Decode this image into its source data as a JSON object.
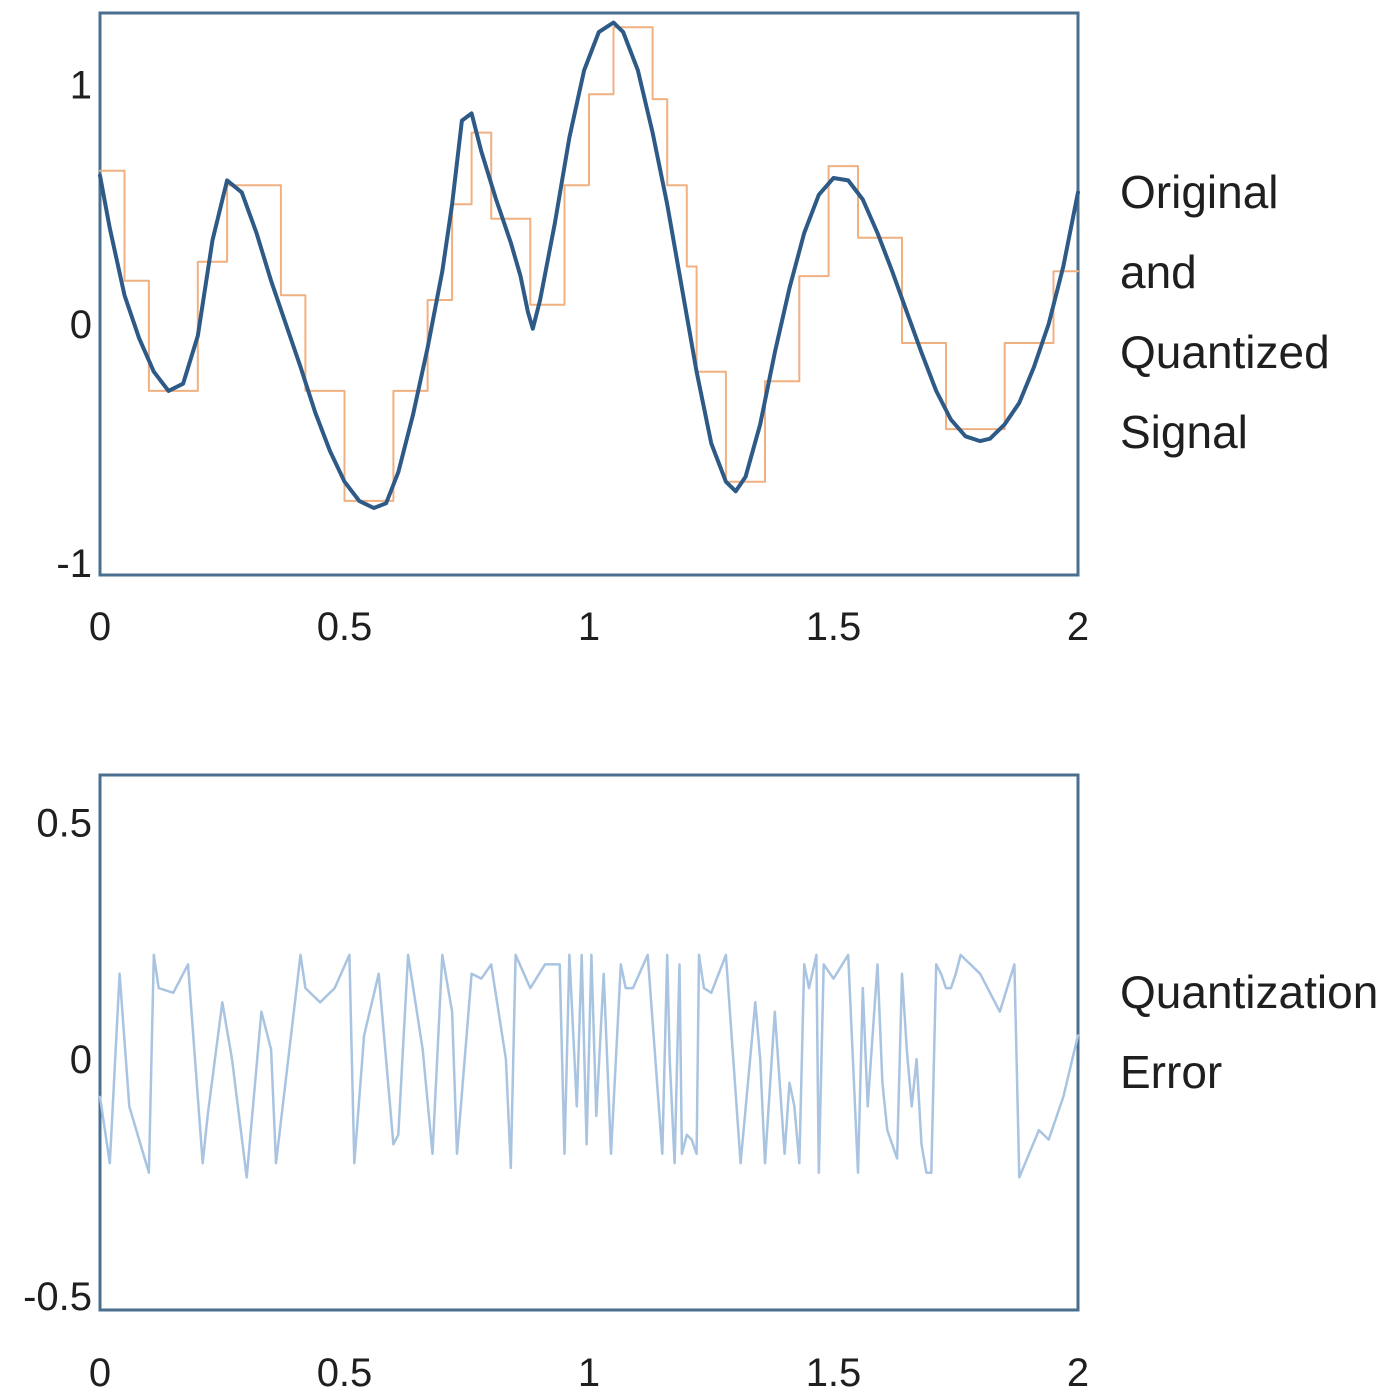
{
  "chart_data": [
    {
      "type": "line",
      "title": "",
      "xlabel": "",
      "ylabel": "",
      "side_label_lines": [
        "Original",
        "and",
        "Quantized",
        "Signal"
      ],
      "xlim": [
        0,
        2
      ],
      "ylim": [
        -1.05,
        1.3
      ],
      "x_ticks": [
        {
          "value": 0,
          "label": "0"
        },
        {
          "value": 0.5,
          "label": "0.5"
        },
        {
          "value": 1,
          "label": "1"
        },
        {
          "value": 1.5,
          "label": "1.5"
        },
        {
          "value": 2,
          "label": "2"
        }
      ],
      "y_ticks": [
        {
          "value": 1,
          "label": "1"
        },
        {
          "value": 0,
          "label": "0"
        },
        {
          "value": -1,
          "label": "-1"
        }
      ],
      "grid": false,
      "legend": "none",
      "series": [
        {
          "key": "original",
          "style": "line",
          "color": "#2e5a87",
          "x": [
            0,
            0.02,
            0.05,
            0.08,
            0.11,
            0.14,
            0.17,
            0.2,
            0.23,
            0.26,
            0.29,
            0.32,
            0.35,
            0.38,
            0.41,
            0.44,
            0.47,
            0.5,
            0.53,
            0.56,
            0.585,
            0.61,
            0.64,
            0.67,
            0.7,
            0.72,
            0.74,
            0.76,
            0.78,
            0.81,
            0.84,
            0.86,
            0.875,
            0.885,
            0.9,
            0.93,
            0.96,
            0.99,
            1.02,
            1.05,
            1.07,
            1.1,
            1.13,
            1.16,
            1.19,
            1.22,
            1.25,
            1.28,
            1.3,
            1.32,
            1.35,
            1.38,
            1.41,
            1.44,
            1.47,
            1.5,
            1.53,
            1.56,
            1.59,
            1.62,
            1.65,
            1.68,
            1.71,
            1.74,
            1.77,
            1.8,
            1.82,
            1.85,
            1.88,
            1.91,
            1.94,
            1.97,
            2.0
          ],
          "y": [
            0.62,
            0.4,
            0.12,
            -0.06,
            -0.2,
            -0.28,
            -0.25,
            -0.05,
            0.35,
            0.6,
            0.55,
            0.38,
            0.18,
            0.0,
            -0.18,
            -0.37,
            -0.53,
            -0.66,
            -0.74,
            -0.77,
            -0.75,
            -0.62,
            -0.38,
            -0.1,
            0.22,
            0.5,
            0.85,
            0.88,
            0.72,
            0.52,
            0.34,
            0.2,
            0.05,
            -0.02,
            0.1,
            0.42,
            0.78,
            1.06,
            1.22,
            1.26,
            1.22,
            1.06,
            0.8,
            0.5,
            0.15,
            -0.2,
            -0.5,
            -0.66,
            -0.7,
            -0.64,
            -0.42,
            -0.12,
            0.15,
            0.38,
            0.54,
            0.61,
            0.6,
            0.52,
            0.38,
            0.22,
            0.05,
            -0.12,
            -0.28,
            -0.4,
            -0.47,
            -0.49,
            -0.48,
            -0.42,
            -0.33,
            -0.18,
            0.0,
            0.24,
            0.55
          ]
        },
        {
          "key": "quantized",
          "style": "step",
          "color": "#f0b080",
          "edges": [
            0,
            0.05,
            0.1,
            0.2,
            0.26,
            0.37,
            0.42,
            0.5,
            0.6,
            0.67,
            0.72,
            0.76,
            0.8,
            0.88,
            0.95,
            1.0,
            1.05,
            1.13,
            1.16,
            1.2,
            1.22,
            1.28,
            1.36,
            1.43,
            1.49,
            1.55,
            1.64,
            1.73,
            1.85,
            1.95,
            2.0
          ],
          "levels": [
            0.64,
            0.18,
            -0.28,
            0.26,
            0.58,
            0.12,
            -0.28,
            -0.74,
            -0.28,
            0.1,
            0.5,
            0.8,
            0.44,
            0.08,
            0.58,
            0.96,
            1.24,
            0.94,
            0.58,
            0.24,
            -0.2,
            -0.66,
            -0.24,
            0.2,
            0.66,
            0.36,
            -0.08,
            -0.44,
            -0.08,
            0.22,
            0.22
          ]
        }
      ]
    },
    {
      "type": "line",
      "title": "",
      "xlabel": "",
      "ylabel": "",
      "side_label_lines": [
        "Quantization",
        "Error"
      ],
      "xlim": [
        0,
        2
      ],
      "ylim": [
        -0.53,
        0.6
      ],
      "x_ticks": [
        {
          "value": 0,
          "label": "0"
        },
        {
          "value": 0.5,
          "label": "0.5"
        },
        {
          "value": 1,
          "label": "1"
        },
        {
          "value": 1.5,
          "label": "1.5"
        },
        {
          "value": 2,
          "label": "2"
        }
      ],
      "y_ticks": [
        {
          "value": 0.5,
          "label": "0.5"
        },
        {
          "value": 0,
          "label": "0"
        },
        {
          "value": -0.5,
          "label": "-0.5"
        }
      ],
      "grid": false,
      "legend": "none",
      "series": [
        {
          "key": "error",
          "style": "line",
          "color": "#a9c4e0",
          "x": [
            0,
            0.02,
            0.04,
            0.06,
            0.1,
            0.11,
            0.12,
            0.15,
            0.18,
            0.21,
            0.22,
            0.25,
            0.27,
            0.3,
            0.33,
            0.35,
            0.36,
            0.41,
            0.42,
            0.45,
            0.48,
            0.51,
            0.52,
            0.54,
            0.57,
            0.6,
            0.61,
            0.63,
            0.66,
            0.68,
            0.7,
            0.72,
            0.73,
            0.76,
            0.78,
            0.8,
            0.83,
            0.84,
            0.85,
            0.88,
            0.91,
            0.94,
            0.95,
            0.96,
            0.975,
            0.985,
            0.995,
            1.005,
            1.015,
            1.03,
            1.045,
            1.065,
            1.075,
            1.09,
            1.12,
            1.15,
            1.16,
            1.165,
            1.175,
            1.185,
            1.19,
            1.2,
            1.21,
            1.22,
            1.225,
            1.235,
            1.25,
            1.28,
            1.31,
            1.34,
            1.35,
            1.36,
            1.38,
            1.4,
            1.41,
            1.42,
            1.43,
            1.44,
            1.45,
            1.465,
            1.47,
            1.48,
            1.5,
            1.53,
            1.55,
            1.56,
            1.57,
            1.59,
            1.6,
            1.61,
            1.62,
            1.63,
            1.64,
            1.65,
            1.66,
            1.67,
            1.68,
            1.69,
            1.7,
            1.71,
            1.72,
            1.73,
            1.74,
            1.75,
            1.76,
            1.8,
            1.84,
            1.87,
            1.88,
            1.92,
            1.94,
            1.97,
            2.0
          ],
          "y": [
            -0.08,
            -0.22,
            0.18,
            -0.1,
            -0.24,
            0.22,
            0.15,
            0.14,
            0.2,
            -0.22,
            -0.12,
            0.12,
            0.0,
            -0.25,
            0.1,
            0.02,
            -0.22,
            0.22,
            0.15,
            0.12,
            0.15,
            0.22,
            -0.22,
            0.05,
            0.18,
            -0.18,
            -0.16,
            0.22,
            0.02,
            -0.2,
            0.22,
            0.1,
            -0.2,
            0.18,
            0.17,
            0.2,
            0.0,
            -0.23,
            0.22,
            0.15,
            0.2,
            0.2,
            -0.2,
            0.22,
            -0.1,
            0.22,
            -0.18,
            0.22,
            -0.12,
            0.18,
            -0.2,
            0.2,
            0.15,
            0.15,
            0.22,
            -0.2,
            0.22,
            0.0,
            -0.22,
            0.2,
            -0.2,
            -0.16,
            -0.17,
            -0.2,
            0.22,
            0.15,
            0.14,
            0.22,
            -0.22,
            0.12,
            0.0,
            -0.22,
            0.1,
            -0.2,
            -0.05,
            -0.1,
            -0.22,
            0.2,
            0.15,
            0.22,
            -0.24,
            0.2,
            0.17,
            0.22,
            -0.24,
            0.15,
            -0.1,
            0.2,
            -0.05,
            -0.15,
            -0.18,
            -0.21,
            0.18,
            0.02,
            -0.1,
            0.0,
            -0.18,
            -0.24,
            -0.24,
            0.2,
            0.18,
            0.15,
            0.15,
            0.18,
            0.22,
            0.18,
            0.1,
            0.2,
            -0.25,
            -0.15,
            -0.17,
            -0.08,
            0.05
          ]
        }
      ]
    }
  ]
}
